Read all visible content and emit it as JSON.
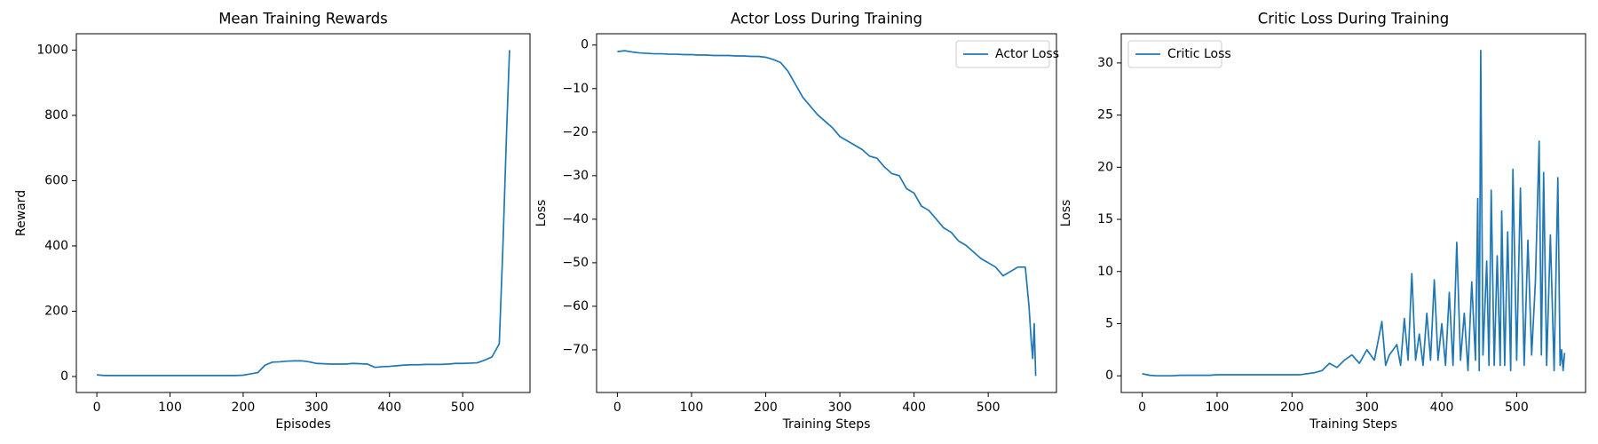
{
  "chart_data": [
    {
      "type": "line",
      "title": "Mean Training Rewards",
      "xlabel": "Episodes",
      "ylabel": "Reward",
      "x": [
        0,
        10,
        20,
        30,
        40,
        50,
        60,
        70,
        80,
        90,
        100,
        110,
        120,
        130,
        140,
        150,
        160,
        170,
        180,
        190,
        200,
        210,
        220,
        230,
        240,
        250,
        260,
        270,
        280,
        290,
        300,
        310,
        320,
        330,
        340,
        350,
        360,
        370,
        380,
        390,
        400,
        410,
        420,
        430,
        440,
        450,
        460,
        470,
        480,
        490,
        500,
        510,
        520,
        530,
        540,
        550,
        555,
        560,
        564
      ],
      "series": [
        {
          "color": "#1f77b4",
          "values": [
            5,
            3,
            3,
            3,
            3,
            3,
            3,
            3,
            3,
            3,
            3,
            3,
            3,
            3,
            3,
            3,
            3,
            3,
            3,
            3,
            4,
            8,
            12,
            35,
            44,
            45,
            47,
            48,
            48,
            45,
            40,
            39,
            38,
            38,
            38,
            40,
            39,
            38,
            28,
            30,
            31,
            33,
            35,
            36,
            36,
            37,
            37,
            37,
            38,
            40,
            40,
            41,
            42,
            50,
            60,
            100,
            400,
            750,
            1000
          ]
        }
      ],
      "xlim": [
        -28,
        592
      ],
      "ylim": [
        -49,
        1050
      ],
      "xticks": [
        0,
        100,
        200,
        300,
        400,
        500
      ],
      "yticks": [
        0,
        200,
        400,
        600,
        800,
        1000
      ]
    },
    {
      "type": "line",
      "title": "Actor Loss During Training",
      "xlabel": "Training Steps",
      "ylabel": "Loss",
      "x": [
        0,
        10,
        20,
        30,
        40,
        50,
        60,
        70,
        80,
        90,
        100,
        110,
        120,
        130,
        140,
        150,
        160,
        170,
        180,
        190,
        200,
        210,
        220,
        230,
        240,
        250,
        260,
        270,
        280,
        290,
        300,
        310,
        320,
        330,
        340,
        350,
        360,
        370,
        380,
        390,
        400,
        410,
        420,
        430,
        440,
        450,
        460,
        470,
        480,
        490,
        500,
        510,
        520,
        530,
        540,
        550,
        555,
        558,
        560,
        562,
        564
      ],
      "series": [
        {
          "name": "Actor Loss",
          "color": "#1f77b4",
          "values": [
            -1.5,
            -1.3,
            -1.6,
            -1.8,
            -1.9,
            -2.0,
            -2.0,
            -2.1,
            -2.1,
            -2.2,
            -2.2,
            -2.3,
            -2.3,
            -2.4,
            -2.4,
            -2.4,
            -2.5,
            -2.5,
            -2.6,
            -2.6,
            -2.8,
            -3.3,
            -4,
            -6,
            -9,
            -12,
            -14,
            -16,
            -17.5,
            -19,
            -21,
            -22,
            -23,
            -24,
            -25.5,
            -26,
            -28,
            -29.5,
            -30,
            -33,
            -34,
            -37,
            -38,
            -40,
            -42,
            -43,
            -45,
            -46,
            -47.5,
            -49,
            -50,
            -51,
            -53,
            -52,
            -51,
            -51,
            -60,
            -68,
            -72,
            -64,
            -76
          ]
        }
      ],
      "xlim": [
        -28,
        592
      ],
      "ylim": [
        -79.8,
        2.6
      ],
      "xticks": [
        0,
        100,
        200,
        300,
        400,
        500
      ],
      "yticks": [
        {
          "value": -70,
          "label": "−70"
        },
        {
          "value": -60,
          "label": "−60"
        },
        {
          "value": -50,
          "label": "−50"
        },
        {
          "value": -40,
          "label": "−40"
        },
        {
          "value": -30,
          "label": "−30"
        },
        {
          "value": -20,
          "label": "−20"
        },
        {
          "value": -10,
          "label": "−10"
        },
        0
      ],
      "legend": "upper right"
    },
    {
      "type": "line",
      "title": "Critic Loss During Training",
      "xlabel": "Training Steps",
      "ylabel": "Loss",
      "x": [
        0,
        10,
        20,
        30,
        40,
        50,
        60,
        70,
        80,
        90,
        100,
        110,
        120,
        130,
        140,
        150,
        160,
        170,
        180,
        190,
        200,
        210,
        220,
        230,
        240,
        250,
        260,
        270,
        280,
        290,
        300,
        310,
        320,
        325,
        330,
        340,
        345,
        350,
        355,
        360,
        365,
        370,
        375,
        380,
        385,
        390,
        395,
        400,
        405,
        410,
        415,
        420,
        425,
        430,
        435,
        440,
        445,
        448,
        450,
        452,
        455,
        460,
        463,
        466,
        470,
        474,
        478,
        480,
        484,
        488,
        492,
        495,
        500,
        505,
        510,
        515,
        520,
        525,
        530,
        533,
        536,
        540,
        545,
        550,
        555,
        558,
        560,
        562,
        564
      ],
      "series": [
        {
          "name": "Critic Loss",
          "color": "#1f77b4",
          "values": [
            0.2,
            0.05,
            0,
            0,
            0,
            0.05,
            0.05,
            0.05,
            0.05,
            0.05,
            0.1,
            0.1,
            0.1,
            0.1,
            0.1,
            0.1,
            0.1,
            0.1,
            0.1,
            0.1,
            0.1,
            0.1,
            0.2,
            0.3,
            0.5,
            1.2,
            0.8,
            1.5,
            2.0,
            1.2,
            2.5,
            1.5,
            5.2,
            1.0,
            2.0,
            3.0,
            1.0,
            5.5,
            1.5,
            9.8,
            1.5,
            4.0,
            1.0,
            6.0,
            1.5,
            9.2,
            1.5,
            5.0,
            1.0,
            8.0,
            1.0,
            12.8,
            1.5,
            6.0,
            0.5,
            9.0,
            1.5,
            17.0,
            0.5,
            31.2,
            2.0,
            11.0,
            1.0,
            17.8,
            1.0,
            11.5,
            1.0,
            15.8,
            1.0,
            13.8,
            0.5,
            19.8,
            1.5,
            18.0,
            1.0,
            13.0,
            2.0,
            9.0,
            22.5,
            2.0,
            19.5,
            1.0,
            13.5,
            0.5,
            19.0,
            1.0,
            2.5,
            0.5,
            2.2
          ]
        }
      ],
      "xlim": [
        -28,
        592
      ],
      "ylim": [
        -1.6,
        32.8
      ],
      "xticks": [
        0,
        100,
        200,
        300,
        400,
        500
      ],
      "yticks": [
        0,
        5,
        10,
        15,
        20,
        25,
        30
      ],
      "legend": "upper left"
    }
  ]
}
